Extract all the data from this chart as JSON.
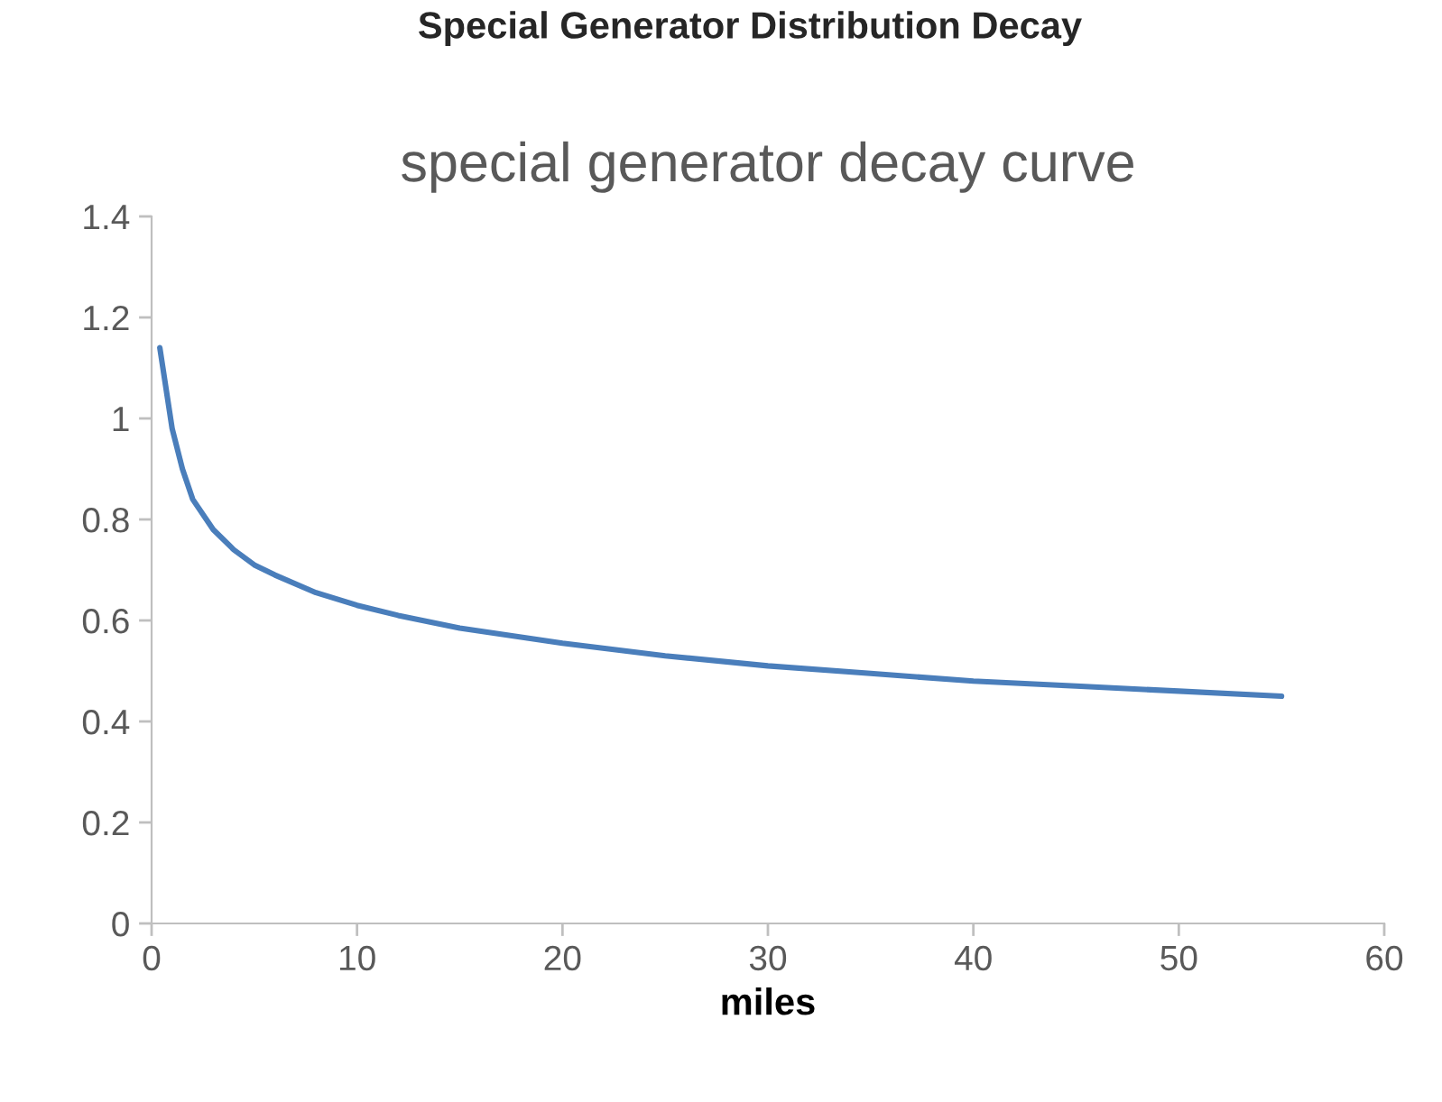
{
  "chart_data": {
    "type": "line",
    "title": "special generator decay curve",
    "xlabel": "miles",
    "annotations": [
      "Special Generator Distribution Decay"
    ],
    "series": [
      {
        "color": "#4a7ebb",
        "x": [
          0.4,
          1,
          1.5,
          2,
          3,
          4,
          5,
          6,
          8,
          10,
          12,
          15,
          20,
          25,
          30,
          35,
          40,
          45,
          50,
          55
        ],
        "values": [
          1.14,
          0.98,
          0.9,
          0.84,
          0.78,
          0.74,
          0.71,
          0.69,
          0.655,
          0.63,
          0.61,
          0.585,
          0.555,
          0.53,
          0.51,
          0.495,
          0.48,
          0.47,
          0.46,
          0.45
        ]
      }
    ],
    "xlim": [
      0,
      60
    ],
    "xticks": [
      0,
      10,
      20,
      30,
      40,
      50,
      60
    ],
    "ylim": [
      0,
      1.4
    ],
    "yticks": [
      0,
      0.2,
      0.4,
      0.6,
      0.8,
      1,
      1.2,
      1.4
    ],
    "grid": false,
    "legend": false,
    "marker": "none",
    "line_style": "solid"
  }
}
